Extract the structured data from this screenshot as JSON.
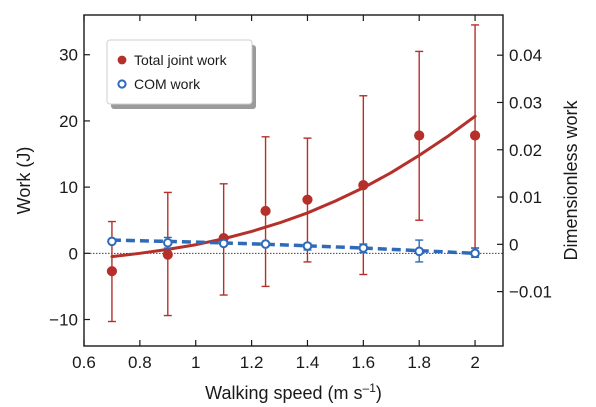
{
  "chart_data": {
    "type": "line",
    "xlabel": "Walking speed (m s",
    "xlabel_sup": "–1",
    "xlabel_close": ")",
    "ylabel": "Work (J)",
    "y2label": "Dimensionless work",
    "xlim": [
      0.6,
      2.1
    ],
    "ylim": [
      -14,
      36
    ],
    "y2lim": [
      -0.0215,
      0.0485
    ],
    "x_ticks": [
      0.6,
      0.8,
      1.0,
      1.2,
      1.4,
      1.6,
      1.8,
      2.0
    ],
    "x_tick_labels": [
      "0.6",
      "0.8",
      "1",
      "1.2",
      "1.4",
      "1.6",
      "1.8",
      "2"
    ],
    "y_ticks": [
      -10,
      0,
      10,
      20,
      30
    ],
    "y_tick_labels": [
      "−10",
      "0",
      "10",
      "20",
      "30"
    ],
    "y2_ticks": [
      -0.01,
      0,
      0.01,
      0.02,
      0.03,
      0.04
    ],
    "y2_tick_labels": [
      "−0.01",
      "0",
      "0.01",
      "0.02",
      "0.03",
      "0.04"
    ],
    "zero_line": true,
    "grid": false,
    "legend_position": "top-left",
    "series": [
      {
        "name": "Total joint work",
        "color": "#b5302a",
        "marker": "filled-circle",
        "x": [
          0.7,
          0.9,
          1.1,
          1.25,
          1.4,
          1.6,
          1.8,
          2.0
        ],
        "y": [
          -2.7,
          -0.2,
          2.3,
          6.4,
          8.1,
          10.3,
          17.8,
          17.8
        ],
        "err_low": [
          -10.3,
          -9.4,
          -6.3,
          -5.0,
          -1.3,
          -3.2,
          5.0,
          0.8
        ],
        "err_high": [
          4.8,
          9.2,
          10.5,
          17.6,
          17.4,
          23.8,
          30.5,
          34.5
        ],
        "fit_curve": {
          "x": [
            0.7,
            0.8,
            0.9,
            1.0,
            1.1,
            1.2,
            1.3,
            1.4,
            1.5,
            1.6,
            1.7,
            1.8,
            1.9,
            2.0
          ],
          "y": [
            -0.5,
            0.0,
            0.6,
            1.3,
            2.2,
            3.3,
            4.6,
            6.1,
            7.9,
            9.9,
            12.2,
            14.8,
            17.6,
            20.7
          ]
        }
      },
      {
        "name": "COM work",
        "color": "#2e6ab8",
        "marker": "open-circle",
        "x": [
          0.7,
          0.9,
          1.1,
          1.25,
          1.4,
          1.6,
          1.8,
          2.0
        ],
        "y": [
          1.8,
          1.6,
          1.5,
          1.4,
          1.1,
          0.8,
          0.3,
          0.0
        ],
        "err_low": [
          1.8,
          0.8,
          1.5,
          1.4,
          0.5,
          0.1,
          -1.3,
          -0.6
        ],
        "err_high": [
          1.8,
          2.4,
          1.5,
          1.4,
          1.5,
          1.4,
          2.0,
          0.8
        ],
        "fit_curve": {
          "x": [
            0.7,
            1.0,
            1.3,
            1.6,
            1.8,
            2.0
          ],
          "y": [
            2.0,
            1.7,
            1.3,
            0.8,
            0.4,
            0.0
          ]
        }
      }
    ]
  }
}
